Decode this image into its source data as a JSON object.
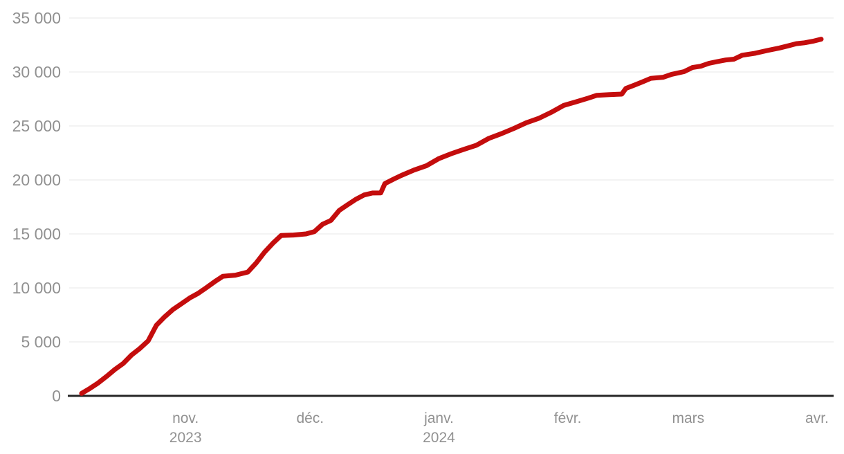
{
  "chart_data": {
    "type": "line",
    "title": "",
    "xlabel": "",
    "ylabel": "",
    "grid": true,
    "legend": "none",
    "ylim": [
      0,
      35000
    ],
    "x_domain": [
      "2023-10-04",
      "2024-04-05"
    ],
    "colors": {
      "line": "#c40d0d",
      "axis_label": "#919191",
      "gridline": "#e7e7e7",
      "baseline": "#262626",
      "background": "#ffffff"
    },
    "y_ticks": [
      {
        "value": 0,
        "label": "0"
      },
      {
        "value": 5000,
        "label": "5 000"
      },
      {
        "value": 10000,
        "label": "10 000"
      },
      {
        "value": 15000,
        "label": "15 000"
      },
      {
        "value": 20000,
        "label": "20 000"
      },
      {
        "value": 25000,
        "label": "25 000"
      },
      {
        "value": 30000,
        "label": "30 000"
      },
      {
        "value": 35000,
        "label": "35 000"
      }
    ],
    "x_ticks": [
      {
        "date": "2023-11-01",
        "label": "nov.",
        "year": "2023"
      },
      {
        "date": "2023-12-01",
        "label": "déc.",
        "year": ""
      },
      {
        "date": "2024-01-01",
        "label": "janv.",
        "year": "2024"
      },
      {
        "date": "2024-02-01",
        "label": "févr.",
        "year": ""
      },
      {
        "date": "2024-03-01",
        "label": "mars",
        "year": ""
      },
      {
        "date": "2024-04-01",
        "label": "avr.",
        "year": ""
      }
    ],
    "series": [
      {
        "name": "cumulative-count",
        "points": [
          [
            "2023-10-07",
            230
          ],
          [
            "2023-10-09",
            690
          ],
          [
            "2023-10-11",
            1200
          ],
          [
            "2023-10-13",
            1800
          ],
          [
            "2023-10-15",
            2450
          ],
          [
            "2023-10-17",
            3000
          ],
          [
            "2023-10-19",
            3785
          ],
          [
            "2023-10-21",
            4385
          ],
          [
            "2023-10-23",
            5087
          ],
          [
            "2023-10-25",
            6547
          ],
          [
            "2023-10-27",
            7326
          ],
          [
            "2023-10-29",
            8005
          ],
          [
            "2023-10-31",
            8525
          ],
          [
            "2023-11-02",
            9061
          ],
          [
            "2023-11-04",
            9488
          ],
          [
            "2023-11-06",
            10022
          ],
          [
            "2023-11-08",
            10569
          ],
          [
            "2023-11-10",
            11078
          ],
          [
            "2023-11-13",
            11180
          ],
          [
            "2023-11-16",
            11470
          ],
          [
            "2023-11-18",
            12300
          ],
          [
            "2023-11-20",
            13300
          ],
          [
            "2023-11-22",
            14128
          ],
          [
            "2023-11-24",
            14854
          ],
          [
            "2023-11-27",
            14900
          ],
          [
            "2023-11-30",
            15000
          ],
          [
            "2023-12-02",
            15207
          ],
          [
            "2023-12-04",
            15899
          ],
          [
            "2023-12-06",
            16248
          ],
          [
            "2023-12-08",
            17177
          ],
          [
            "2023-12-10",
            17700
          ],
          [
            "2023-12-12",
            18205
          ],
          [
            "2023-12-14",
            18608
          ],
          [
            "2023-12-16",
            18787
          ],
          [
            "2023-12-18",
            18800
          ],
          [
            "2023-12-19",
            19667
          ],
          [
            "2023-12-21",
            20057
          ],
          [
            "2023-12-23",
            20424
          ],
          [
            "2023-12-26",
            20915
          ],
          [
            "2023-12-29",
            21320
          ],
          [
            "2024-01-01",
            21978
          ],
          [
            "2024-01-04",
            22438
          ],
          [
            "2024-01-07",
            22835
          ],
          [
            "2024-01-10",
            23210
          ],
          [
            "2024-01-13",
            23843
          ],
          [
            "2024-01-16",
            24285
          ],
          [
            "2024-01-19",
            24762
          ],
          [
            "2024-01-22",
            25295
          ],
          [
            "2024-01-25",
            25700
          ],
          [
            "2024-01-28",
            26257
          ],
          [
            "2024-01-31",
            26900
          ],
          [
            "2024-02-03",
            27238
          ],
          [
            "2024-02-06",
            27585
          ],
          [
            "2024-02-08",
            27840
          ],
          [
            "2024-02-11",
            27900
          ],
          [
            "2024-02-14",
            27947
          ],
          [
            "2024-02-15",
            28473
          ],
          [
            "2024-02-17",
            28775
          ],
          [
            "2024-02-19",
            29092
          ],
          [
            "2024-02-21",
            29410
          ],
          [
            "2024-02-24",
            29514
          ],
          [
            "2024-02-26",
            29782
          ],
          [
            "2024-02-29",
            30035
          ],
          [
            "2024-03-02",
            30410
          ],
          [
            "2024-03-04",
            30534
          ],
          [
            "2024-03-06",
            30800
          ],
          [
            "2024-03-08",
            30960
          ],
          [
            "2024-03-10",
            31112
          ],
          [
            "2024-03-12",
            31184
          ],
          [
            "2024-03-14",
            31553
          ],
          [
            "2024-03-17",
            31726
          ],
          [
            "2024-03-20",
            31988
          ],
          [
            "2024-03-23",
            32226
          ],
          [
            "2024-03-25",
            32414
          ],
          [
            "2024-03-27",
            32623
          ],
          [
            "2024-03-29",
            32705
          ],
          [
            "2024-03-31",
            32845
          ],
          [
            "2024-04-02",
            33037
          ]
        ]
      }
    ]
  }
}
